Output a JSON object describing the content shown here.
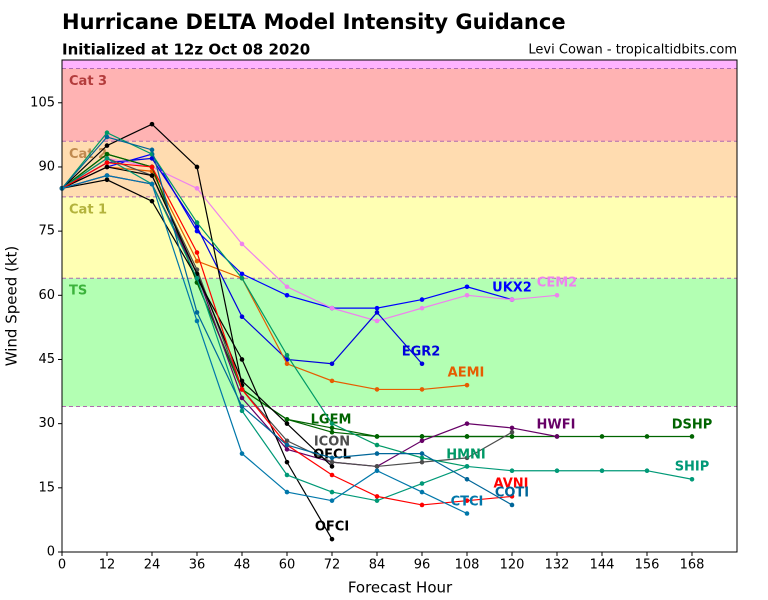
{
  "chart_data": {
    "type": "line",
    "title": "Hurricane DELTA Model Intensity Guidance",
    "subtitle": "Initialized at 12z Oct 08 2020",
    "credit": "Levi Cowan - tropicaltidbits.com",
    "x_label": "Forecast Hour",
    "y_label": "Wind Speed (kt)",
    "xlim": [
      0,
      180
    ],
    "ylim": [
      0,
      115
    ],
    "xticks": [
      0,
      12,
      24,
      36,
      48,
      60,
      72,
      84,
      96,
      108,
      120,
      132,
      144,
      156,
      168
    ],
    "yticks": [
      0,
      15,
      30,
      45,
      60,
      75,
      90,
      105
    ],
    "bands": [
      {
        "label": "TS",
        "from": 34,
        "to": 64,
        "color": "#b3ffb3",
        "label_color": "#3cb33c"
      },
      {
        "label": "Cat 1",
        "from": 64,
        "to": 83,
        "color": "#ffffb3",
        "label_color": "#b3b33c"
      },
      {
        "label": "Cat 2",
        "from": 83,
        "to": 96,
        "color": "#ffdcb0",
        "label_color": "#c08a50"
      },
      {
        "label": "Cat 3",
        "from": 96,
        "to": 113,
        "color": "#ffb3b3",
        "label_color": "#b33c3c"
      },
      {
        "from": 113,
        "to": 115,
        "color": "#ffb3ff"
      }
    ],
    "x": [
      0,
      12,
      24,
      36,
      48,
      60,
      72,
      84,
      96,
      108,
      120,
      132,
      144,
      156,
      168
    ],
    "series": [
      {
        "name": "UKX2",
        "color": "#0000ff",
        "values": [
          85,
          90,
          93,
          75,
          65,
          60,
          57,
          57,
          59,
          62,
          59,
          null,
          null,
          null,
          null
        ]
      },
      {
        "name": "CEM2",
        "color": "#ee82ee",
        "values": [
          85,
          92,
          90,
          85,
          72,
          62,
          57,
          54,
          57,
          60,
          59,
          60,
          null,
          null,
          null
        ]
      },
      {
        "name": "EGR2",
        "color": "#0000dd",
        "values": [
          85,
          91,
          92,
          76,
          55,
          45,
          44,
          56,
          44,
          null,
          null,
          null,
          null,
          null,
          null
        ]
      },
      {
        "name": "AEMI",
        "color": "#e65c00",
        "values": [
          85,
          90,
          89,
          68,
          64,
          44,
          40,
          38,
          38,
          39,
          null,
          null,
          null,
          null,
          null
        ]
      },
      {
        "name": "LGEM",
        "color": "#006400",
        "values": [
          85,
          93,
          90,
          63,
          38,
          31,
          28,
          27,
          27,
          27,
          27,
          null,
          null,
          null,
          null
        ]
      },
      {
        "name": "DSHP",
        "color": "#006400",
        "values": [
          85,
          93,
          90,
          63,
          38,
          31,
          29,
          27,
          27,
          27,
          27,
          27,
          27,
          27,
          27
        ]
      },
      {
        "name": "HWFI",
        "color": "#660066",
        "values": [
          85,
          88,
          86,
          65,
          36,
          24,
          21,
          20,
          26,
          30,
          29,
          27,
          null,
          null,
          null
        ]
      },
      {
        "name": "ICON",
        "color": "#4d4d4d",
        "values": [
          85,
          92,
          88,
          66,
          38,
          26,
          21,
          20,
          21,
          22,
          28,
          null,
          null,
          null,
          null
        ]
      },
      {
        "name": "OFCL",
        "color": "#000000",
        "values": [
          85,
          90,
          88,
          65,
          40,
          30,
          20,
          null,
          null,
          null,
          null,
          null,
          null,
          null,
          null
        ]
      },
      {
        "name": "OFCI",
        "color": "#000000",
        "values": [
          85,
          87,
          82,
          64,
          45,
          21,
          3,
          null,
          null,
          null,
          null,
          null,
          null,
          null,
          null
        ]
      },
      {
        "color": "#000000",
        "values": [
          85,
          95,
          100,
          90,
          39,
          null,
          null,
          null,
          null,
          null,
          null,
          null,
          null,
          null,
          null
        ]
      },
      {
        "name": "HMNI",
        "color": "#009966",
        "values": [
          85,
          98,
          93,
          77,
          64,
          46,
          30,
          25,
          22,
          20,
          null,
          null,
          null,
          null,
          null
        ]
      },
      {
        "name": "SHIP",
        "color": "#009977",
        "values": [
          85,
          92,
          86,
          64,
          33,
          18,
          14,
          12,
          16,
          20,
          19,
          19,
          19,
          19,
          17
        ]
      },
      {
        "name": "AVNI",
        "color": "#ff0000",
        "values": [
          85,
          91,
          90,
          70,
          38,
          25,
          18,
          13,
          11,
          12,
          13,
          null,
          null,
          null,
          null
        ]
      },
      {
        "name": "COTI",
        "color": "#006699",
        "values": [
          85,
          97,
          94,
          56,
          34,
          25,
          22,
          23,
          23,
          17,
          11,
          null,
          null,
          null,
          null
        ]
      },
      {
        "name": "CTCI",
        "color": "#0077aa",
        "values": [
          85,
          88,
          86,
          54,
          23,
          14,
          12,
          19,
          14,
          9,
          null,
          null,
          null,
          null,
          null
        ]
      }
    ]
  }
}
